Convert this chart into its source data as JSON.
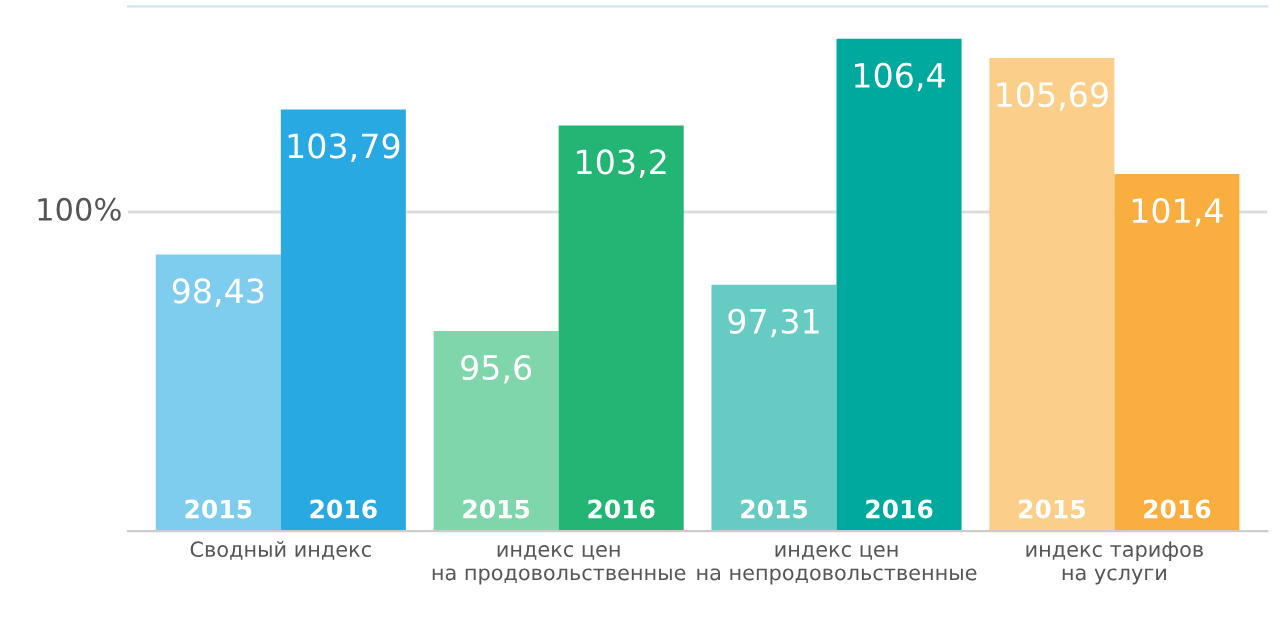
{
  "chart_data": {
    "type": "bar",
    "categories": [
      "Сводный индекс",
      "индекс цен\nна продовольственные",
      "индекс цен\nна непродовольственные",
      "индекс тарифов\nна услуги"
    ],
    "series": [
      {
        "name": "2015",
        "colors": [
          "#7ecdef",
          "#7fd6ab",
          "#66cbc3",
          "#fbcf8a"
        ],
        "values": [
          98.43,
          95.6,
          97.31,
          105.69
        ],
        "value_labels": [
          "98,43",
          "95,6",
          "97,31",
          "105,69"
        ]
      },
      {
        "name": "2016",
        "colors": [
          "#29a9e1",
          "#23b573",
          "#00a99d",
          "#f9ae3f"
        ],
        "values": [
          103.79,
          103.2,
          106.4,
          101.4
        ],
        "value_labels": [
          "103,79",
          "103,2",
          "106,4",
          "101,4"
        ]
      }
    ],
    "ylim": [
      88.2,
      107.6
    ],
    "tick_labels": "x",
    "ref_lines": [
      {
        "axis": "y",
        "value": 100,
        "label": "100%",
        "color": "#dddddd"
      }
    ],
    "grid": false,
    "legend": false
  }
}
